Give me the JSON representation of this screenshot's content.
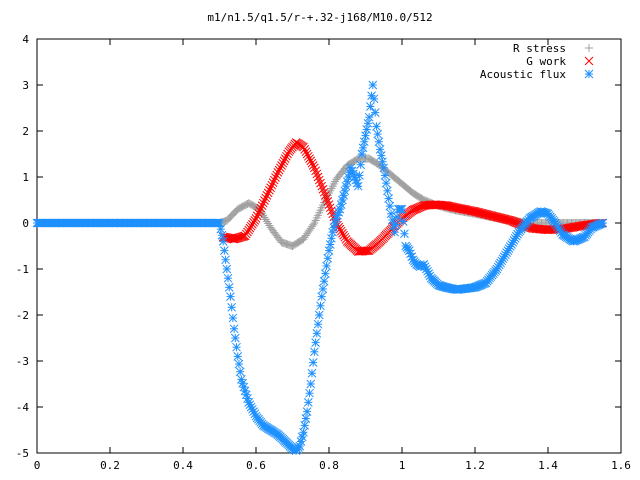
{
  "chart_data": {
    "type": "scatter",
    "title": "m1/n1.5/q1.5/r-+.32-j168/M10.0/512",
    "xlabel": "",
    "ylabel": "",
    "xlim": [
      0,
      1.6
    ],
    "ylim": [
      -5,
      4
    ],
    "x_ticks": [
      "0",
      "0.2",
      "0.4",
      "0.6",
      "0.8",
      "1",
      "1.2",
      "1.4",
      "1.6"
    ],
    "y_ticks": [
      "4",
      "3",
      "2",
      "1",
      "0",
      "-1",
      "-2",
      "-3",
      "-4",
      "-5"
    ],
    "grid": false,
    "legend_position": "top-right",
    "series": [
      {
        "name": "R stress",
        "marker": "+",
        "color": "#a0a0a0",
        "points": [
          [
            0.0,
            0.0
          ],
          [
            0.1,
            0.0
          ],
          [
            0.2,
            0.0
          ],
          [
            0.3,
            0.0
          ],
          [
            0.4,
            0.0
          ],
          [
            0.5,
            0.0
          ],
          [
            0.52,
            0.05
          ],
          [
            0.55,
            0.3
          ],
          [
            0.58,
            0.43
          ],
          [
            0.61,
            0.3
          ],
          [
            0.64,
            -0.1
          ],
          [
            0.67,
            -0.42
          ],
          [
            0.7,
            -0.5
          ],
          [
            0.73,
            -0.35
          ],
          [
            0.76,
            0.0
          ],
          [
            0.79,
            0.5
          ],
          [
            0.82,
            0.95
          ],
          [
            0.85,
            1.25
          ],
          [
            0.88,
            1.4
          ],
          [
            0.91,
            1.4
          ],
          [
            0.94,
            1.25
          ],
          [
            0.97,
            1.05
          ],
          [
            1.0,
            0.85
          ],
          [
            1.03,
            0.65
          ],
          [
            1.06,
            0.5
          ],
          [
            1.09,
            0.4
          ],
          [
            1.12,
            0.33
          ],
          [
            1.15,
            0.27
          ],
          [
            1.2,
            0.2
          ],
          [
            1.25,
            0.12
          ],
          [
            1.3,
            0.05
          ],
          [
            1.35,
            0.0
          ],
          [
            1.4,
            0.0
          ],
          [
            1.45,
            0.0
          ],
          [
            1.5,
            0.0
          ],
          [
            1.55,
            0.0
          ]
        ]
      },
      {
        "name": "G work",
        "marker": "x",
        "color": "#ff0000",
        "points": [
          [
            0.51,
            -0.3
          ],
          [
            0.54,
            -0.35
          ],
          [
            0.57,
            -0.28
          ],
          [
            0.6,
            0.1
          ],
          [
            0.63,
            0.6
          ],
          [
            0.66,
            1.1
          ],
          [
            0.69,
            1.55
          ],
          [
            0.71,
            1.75
          ],
          [
            0.73,
            1.65
          ],
          [
            0.76,
            1.2
          ],
          [
            0.79,
            0.6
          ],
          [
            0.82,
            0.0
          ],
          [
            0.85,
            -0.4
          ],
          [
            0.88,
            -0.62
          ],
          [
            0.91,
            -0.6
          ],
          [
            0.94,
            -0.4
          ],
          [
            0.97,
            -0.15
          ],
          [
            1.0,
            0.1
          ],
          [
            1.03,
            0.28
          ],
          [
            1.06,
            0.38
          ],
          [
            1.09,
            0.4
          ],
          [
            1.12,
            0.38
          ],
          [
            1.15,
            0.33
          ],
          [
            1.2,
            0.25
          ],
          [
            1.25,
            0.15
          ],
          [
            1.3,
            0.05
          ],
          [
            1.33,
            -0.05
          ],
          [
            1.36,
            -0.12
          ],
          [
            1.4,
            -0.15
          ],
          [
            1.45,
            -0.12
          ],
          [
            1.5,
            -0.05
          ],
          [
            1.55,
            0.0
          ]
        ]
      },
      {
        "name": "Acoustic flux",
        "marker": "*",
        "color": "#1e90ff",
        "points": [
          [
            0.0,
            0.0
          ],
          [
            0.1,
            0.0
          ],
          [
            0.2,
            0.0
          ],
          [
            0.3,
            0.0
          ],
          [
            0.4,
            0.0
          ],
          [
            0.5,
            0.0
          ],
          [
            0.51,
            -0.4
          ],
          [
            0.52,
            -1.0
          ],
          [
            0.53,
            -1.6
          ],
          [
            0.54,
            -2.3
          ],
          [
            0.55,
            -2.9
          ],
          [
            0.56,
            -3.4
          ],
          [
            0.58,
            -3.9
          ],
          [
            0.6,
            -4.2
          ],
          [
            0.62,
            -4.4
          ],
          [
            0.64,
            -4.5
          ],
          [
            0.66,
            -4.6
          ],
          [
            0.68,
            -4.75
          ],
          [
            0.7,
            -4.9
          ],
          [
            0.71,
            -4.95
          ],
          [
            0.72,
            -4.85
          ],
          [
            0.73,
            -4.55
          ],
          [
            0.74,
            -4.1
          ],
          [
            0.75,
            -3.5
          ],
          [
            0.76,
            -2.8
          ],
          [
            0.77,
            -2.2
          ],
          [
            0.78,
            -1.6
          ],
          [
            0.79,
            -1.1
          ],
          [
            0.8,
            -0.6
          ],
          [
            0.81,
            -0.2
          ],
          [
            0.82,
            0.1
          ],
          [
            0.83,
            0.3
          ],
          [
            0.84,
            0.6
          ],
          [
            0.85,
            0.9
          ],
          [
            0.86,
            1.2
          ],
          [
            0.88,
            0.8
          ],
          [
            0.89,
            1.5
          ],
          [
            0.91,
            2.3
          ],
          [
            0.92,
            3.0
          ],
          [
            0.93,
            2.1
          ],
          [
            0.94,
            1.6
          ],
          [
            0.95,
            1.2
          ],
          [
            0.96,
            0.7
          ],
          [
            0.97,
            0.2
          ],
          [
            0.98,
            -0.2
          ],
          [
            0.99,
            0.3
          ],
          [
            1.0,
            0.3
          ],
          [
            1.01,
            -0.5
          ],
          [
            1.02,
            -0.6
          ],
          [
            1.03,
            -0.8
          ],
          [
            1.04,
            -0.9
          ],
          [
            1.05,
            -0.95
          ],
          [
            1.06,
            -0.9
          ],
          [
            1.08,
            -1.2
          ],
          [
            1.1,
            -1.35
          ],
          [
            1.12,
            -1.4
          ],
          [
            1.15,
            -1.45
          ],
          [
            1.2,
            -1.4
          ],
          [
            1.23,
            -1.3
          ],
          [
            1.26,
            -1.0
          ],
          [
            1.29,
            -0.6
          ],
          [
            1.32,
            -0.2
          ],
          [
            1.35,
            0.1
          ],
          [
            1.38,
            0.25
          ],
          [
            1.4,
            0.2
          ],
          [
            1.42,
            0.0
          ],
          [
            1.44,
            -0.25
          ],
          [
            1.47,
            -0.4
          ],
          [
            1.5,
            -0.3
          ],
          [
            1.52,
            -0.1
          ],
          [
            1.55,
            0.0
          ]
        ]
      }
    ]
  }
}
